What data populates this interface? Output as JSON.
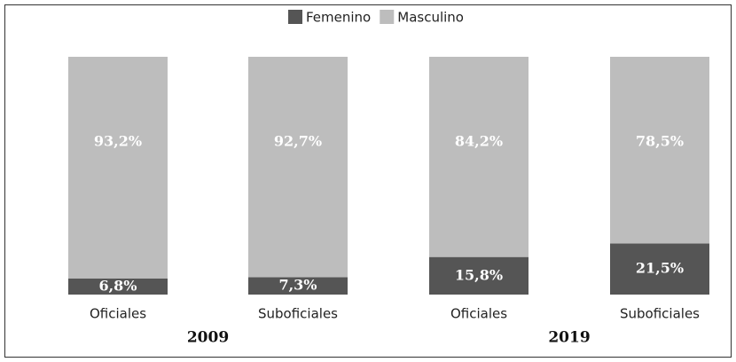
{
  "chart_data": {
    "type": "stacked_bar",
    "categories": [
      "Oficiales",
      "Suboficiales",
      "Oficiales",
      "Suboficiales"
    ],
    "group_labels": [
      "2009",
      "2019"
    ],
    "series": [
      {
        "name": "Femenino",
        "color": "#555555",
        "values": [
          6.8,
          7.3,
          15.8,
          21.5
        ],
        "value_labels": [
          "6,8%",
          "7,3%",
          "15,8%",
          "21,5%"
        ]
      },
      {
        "name": "Masculino",
        "color": "#bdbdbd",
        "values": [
          93.2,
          92.7,
          84.2,
          78.5
        ],
        "value_labels": [
          "93,2%",
          "92,7%",
          "84,2%",
          "78,5%"
        ]
      }
    ],
    "legend": "top"
  }
}
